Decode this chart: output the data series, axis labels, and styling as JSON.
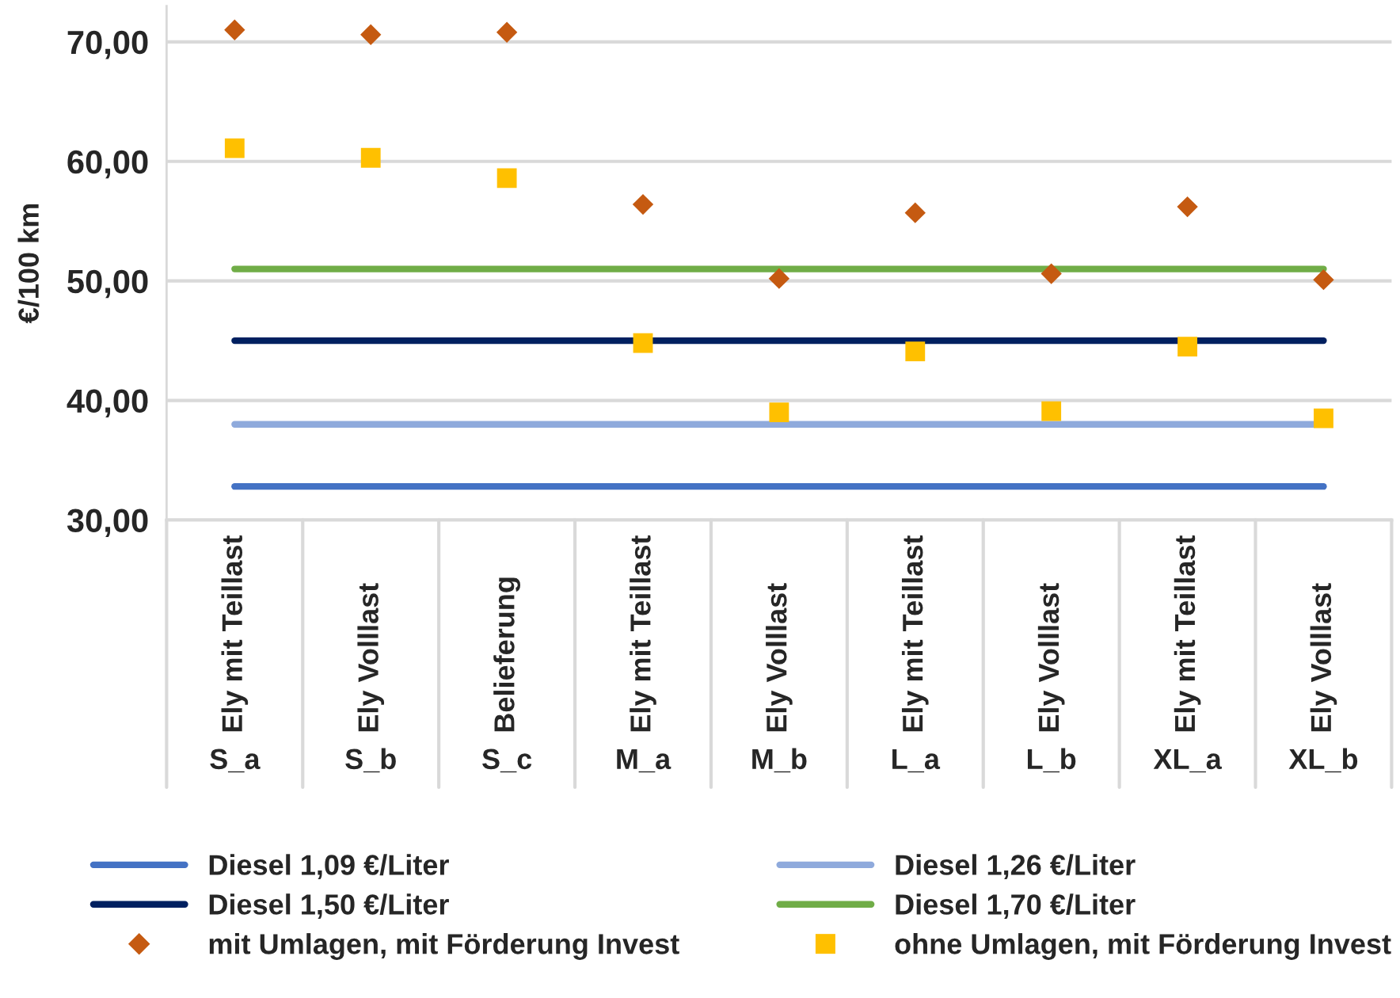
{
  "chart_data": {
    "type": "line",
    "ylabel": "€/100 km",
    "categories": [
      "Ely mit Teillast\nS_a",
      "Ely Volllast\nS_b",
      "Belieferung\nS_c",
      "Ely mit Teillast\nM_a",
      "Ely Volllast\nM_b",
      "Ely mit Teillast\nL_a",
      "Ely Volllast\nL_b",
      "Ely mit Teillast\nXL_a",
      "Ely Volllast\nXL_b"
    ],
    "series": [
      {
        "name": "Diesel 1,09 €/Liter",
        "color": "#4472c4",
        "marker": "none",
        "values": [
          32.8,
          32.8,
          32.8,
          32.8,
          32.8,
          32.8,
          32.8,
          32.8,
          32.8
        ]
      },
      {
        "name": "Diesel 1,26 €/Liter",
        "color": "#8faadc",
        "marker": "none",
        "values": [
          38.0,
          38.0,
          38.0,
          38.0,
          38.0,
          38.0,
          38.0,
          38.0,
          38.0
        ]
      },
      {
        "name": "Diesel 1,50 €/Liter",
        "color": "#002060",
        "marker": "none",
        "values": [
          45.0,
          45.0,
          45.0,
          45.0,
          45.0,
          45.0,
          45.0,
          45.0,
          45.0
        ]
      },
      {
        "name": "Diesel 1,70 €/Liter",
        "color": "#70ad47",
        "marker": "none",
        "values": [
          51.0,
          51.0,
          51.0,
          51.0,
          51.0,
          51.0,
          51.0,
          51.0,
          51.0
        ]
      },
      {
        "name": "mit Umlagen, mit Förderung Invest",
        "type": "scatter",
        "color": "#c55a11",
        "marker": "diamond",
        "values": [
          71.0,
          70.6,
          70.8,
          56.4,
          50.2,
          55.7,
          50.6,
          56.2,
          50.1
        ]
      },
      {
        "name": "ohne Umlagen, mit Förderung Invest",
        "type": "scatter",
        "color": "#ffc000",
        "marker": "square",
        "values": [
          61.1,
          60.3,
          58.6,
          44.8,
          39.0,
          44.1,
          39.1,
          44.5,
          38.5
        ]
      }
    ],
    "ylim": [
      30,
      73
    ],
    "yticks": [
      {
        "value": 30,
        "label": "30,00"
      },
      {
        "value": 40,
        "label": "40,00"
      },
      {
        "value": 50,
        "label": "50,00"
      },
      {
        "value": 60,
        "label": "60,00"
      },
      {
        "value": 70,
        "label": "70,00"
      }
    ],
    "grid": "y",
    "legend": "bottom"
  }
}
